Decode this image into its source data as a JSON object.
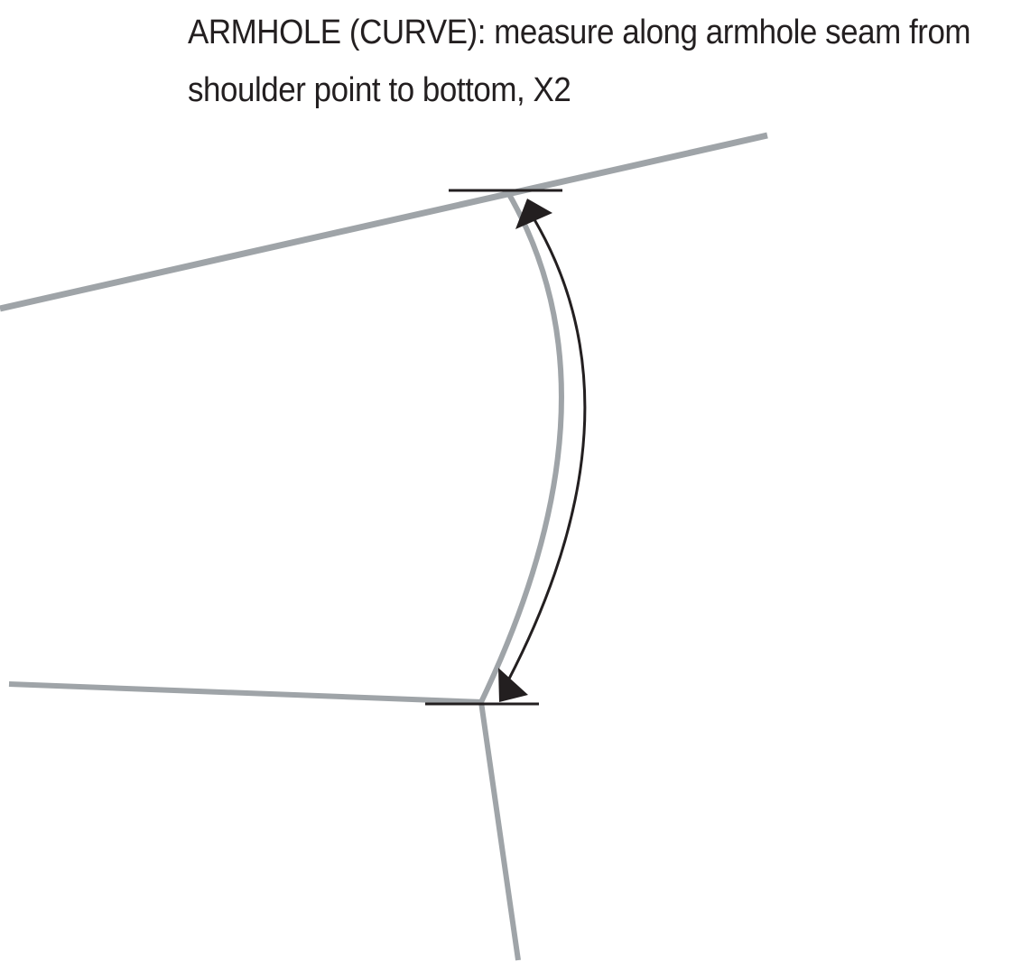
{
  "caption": {
    "line1": "ARMHOLE (CURVE):  measure along armhole seam from",
    "line2": "shoulder point to bottom, X2"
  },
  "colors": {
    "seam": "#9fa4a8",
    "measure": "#231f20",
    "text": "#231f20",
    "background": "#ffffff"
  }
}
